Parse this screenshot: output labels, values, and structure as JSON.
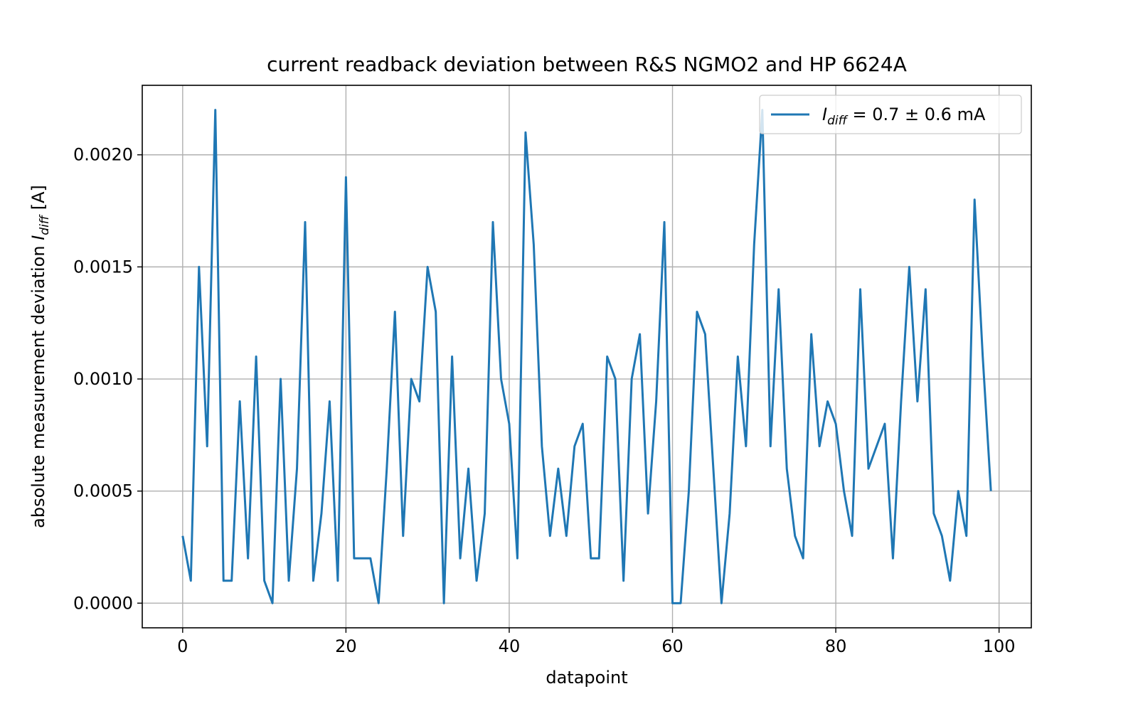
{
  "chart_data": {
    "type": "line",
    "title": "current readback deviation between R&S NGMO2 and HP 6624A",
    "xlabel": "datapoint",
    "ylabel_prefix": "absolute measurement deviation ",
    "ylabel_var": "I",
    "ylabel_sub": "diff",
    "ylabel_suffix": " [A]",
    "xlim": [
      -4.95,
      103.95
    ],
    "ylim": [
      -0.00011,
      0.00231
    ],
    "xticks": [
      0,
      20,
      40,
      60,
      80,
      100
    ],
    "xtick_labels": [
      "0",
      "20",
      "40",
      "60",
      "80",
      "100"
    ],
    "yticks": [
      0,
      0.0005,
      0.001,
      0.0015,
      0.002
    ],
    "ytick_labels": [
      "0.0000",
      "0.0005",
      "0.0010",
      "0.0015",
      "0.0020"
    ],
    "grid": true,
    "legend_position": "top-right",
    "series": [
      {
        "legend_var": "I",
        "legend_sub": "diff",
        "legend_rest": " = 0.7 ± 0.6 mA",
        "color": "#1f77b4",
        "x": [
          0,
          1,
          2,
          3,
          4,
          5,
          6,
          7,
          8,
          9,
          10,
          11,
          12,
          13,
          14,
          15,
          16,
          17,
          18,
          19,
          20,
          21,
          22,
          23,
          24,
          25,
          26,
          27,
          28,
          29,
          30,
          31,
          32,
          33,
          34,
          35,
          36,
          37,
          38,
          39,
          40,
          41,
          42,
          43,
          44,
          45,
          46,
          47,
          48,
          49,
          50,
          51,
          52,
          53,
          54,
          55,
          56,
          57,
          58,
          59,
          60,
          61,
          62,
          63,
          64,
          65,
          66,
          67,
          68,
          69,
          70,
          71,
          72,
          73,
          74,
          75,
          76,
          77,
          78,
          79,
          80,
          81,
          82,
          83,
          84,
          85,
          86,
          87,
          88,
          89,
          90,
          91,
          92,
          93,
          94,
          95,
          96,
          97,
          98,
          99
        ],
        "y": [
          0.0003,
          0.0001,
          0.0015,
          0.0007,
          0.0022,
          0.0001,
          0.0001,
          0.0009,
          0.0002,
          0.0011,
          0.0001,
          0.0,
          0.001,
          0.0001,
          0.0006,
          0.0017,
          0.0001,
          0.0004,
          0.0009,
          0.0001,
          0.0019,
          0.0002,
          0.0002,
          0.0002,
          0.0,
          0.0006,
          0.0013,
          0.0003,
          0.001,
          0.0009,
          0.0015,
          0.0013,
          0.0,
          0.0011,
          0.0002,
          0.0006,
          0.0001,
          0.0004,
          0.0017,
          0.001,
          0.0008,
          0.0002,
          0.0021,
          0.0016,
          0.0007,
          0.0003,
          0.0006,
          0.0003,
          0.0007,
          0.0008,
          0.0002,
          0.0002,
          0.0011,
          0.001,
          0.0001,
          0.001,
          0.0012,
          0.0004,
          0.0009,
          0.0017,
          0.0,
          0.0,
          0.0005,
          0.0013,
          0.0012,
          0.0006,
          0.0,
          0.0004,
          0.0011,
          0.0007,
          0.0016,
          0.0022,
          0.0007,
          0.0014,
          0.0006,
          0.0003,
          0.0002,
          0.0012,
          0.0007,
          0.0009,
          0.0008,
          0.0005,
          0.0003,
          0.0014,
          0.0006,
          0.0007,
          0.0008,
          0.0002,
          0.0009,
          0.0015,
          0.0009,
          0.0014,
          0.0004,
          0.0003,
          0.0001,
          0.0005,
          0.0003,
          0.0018,
          0.0011,
          0.0005
        ]
      }
    ]
  }
}
